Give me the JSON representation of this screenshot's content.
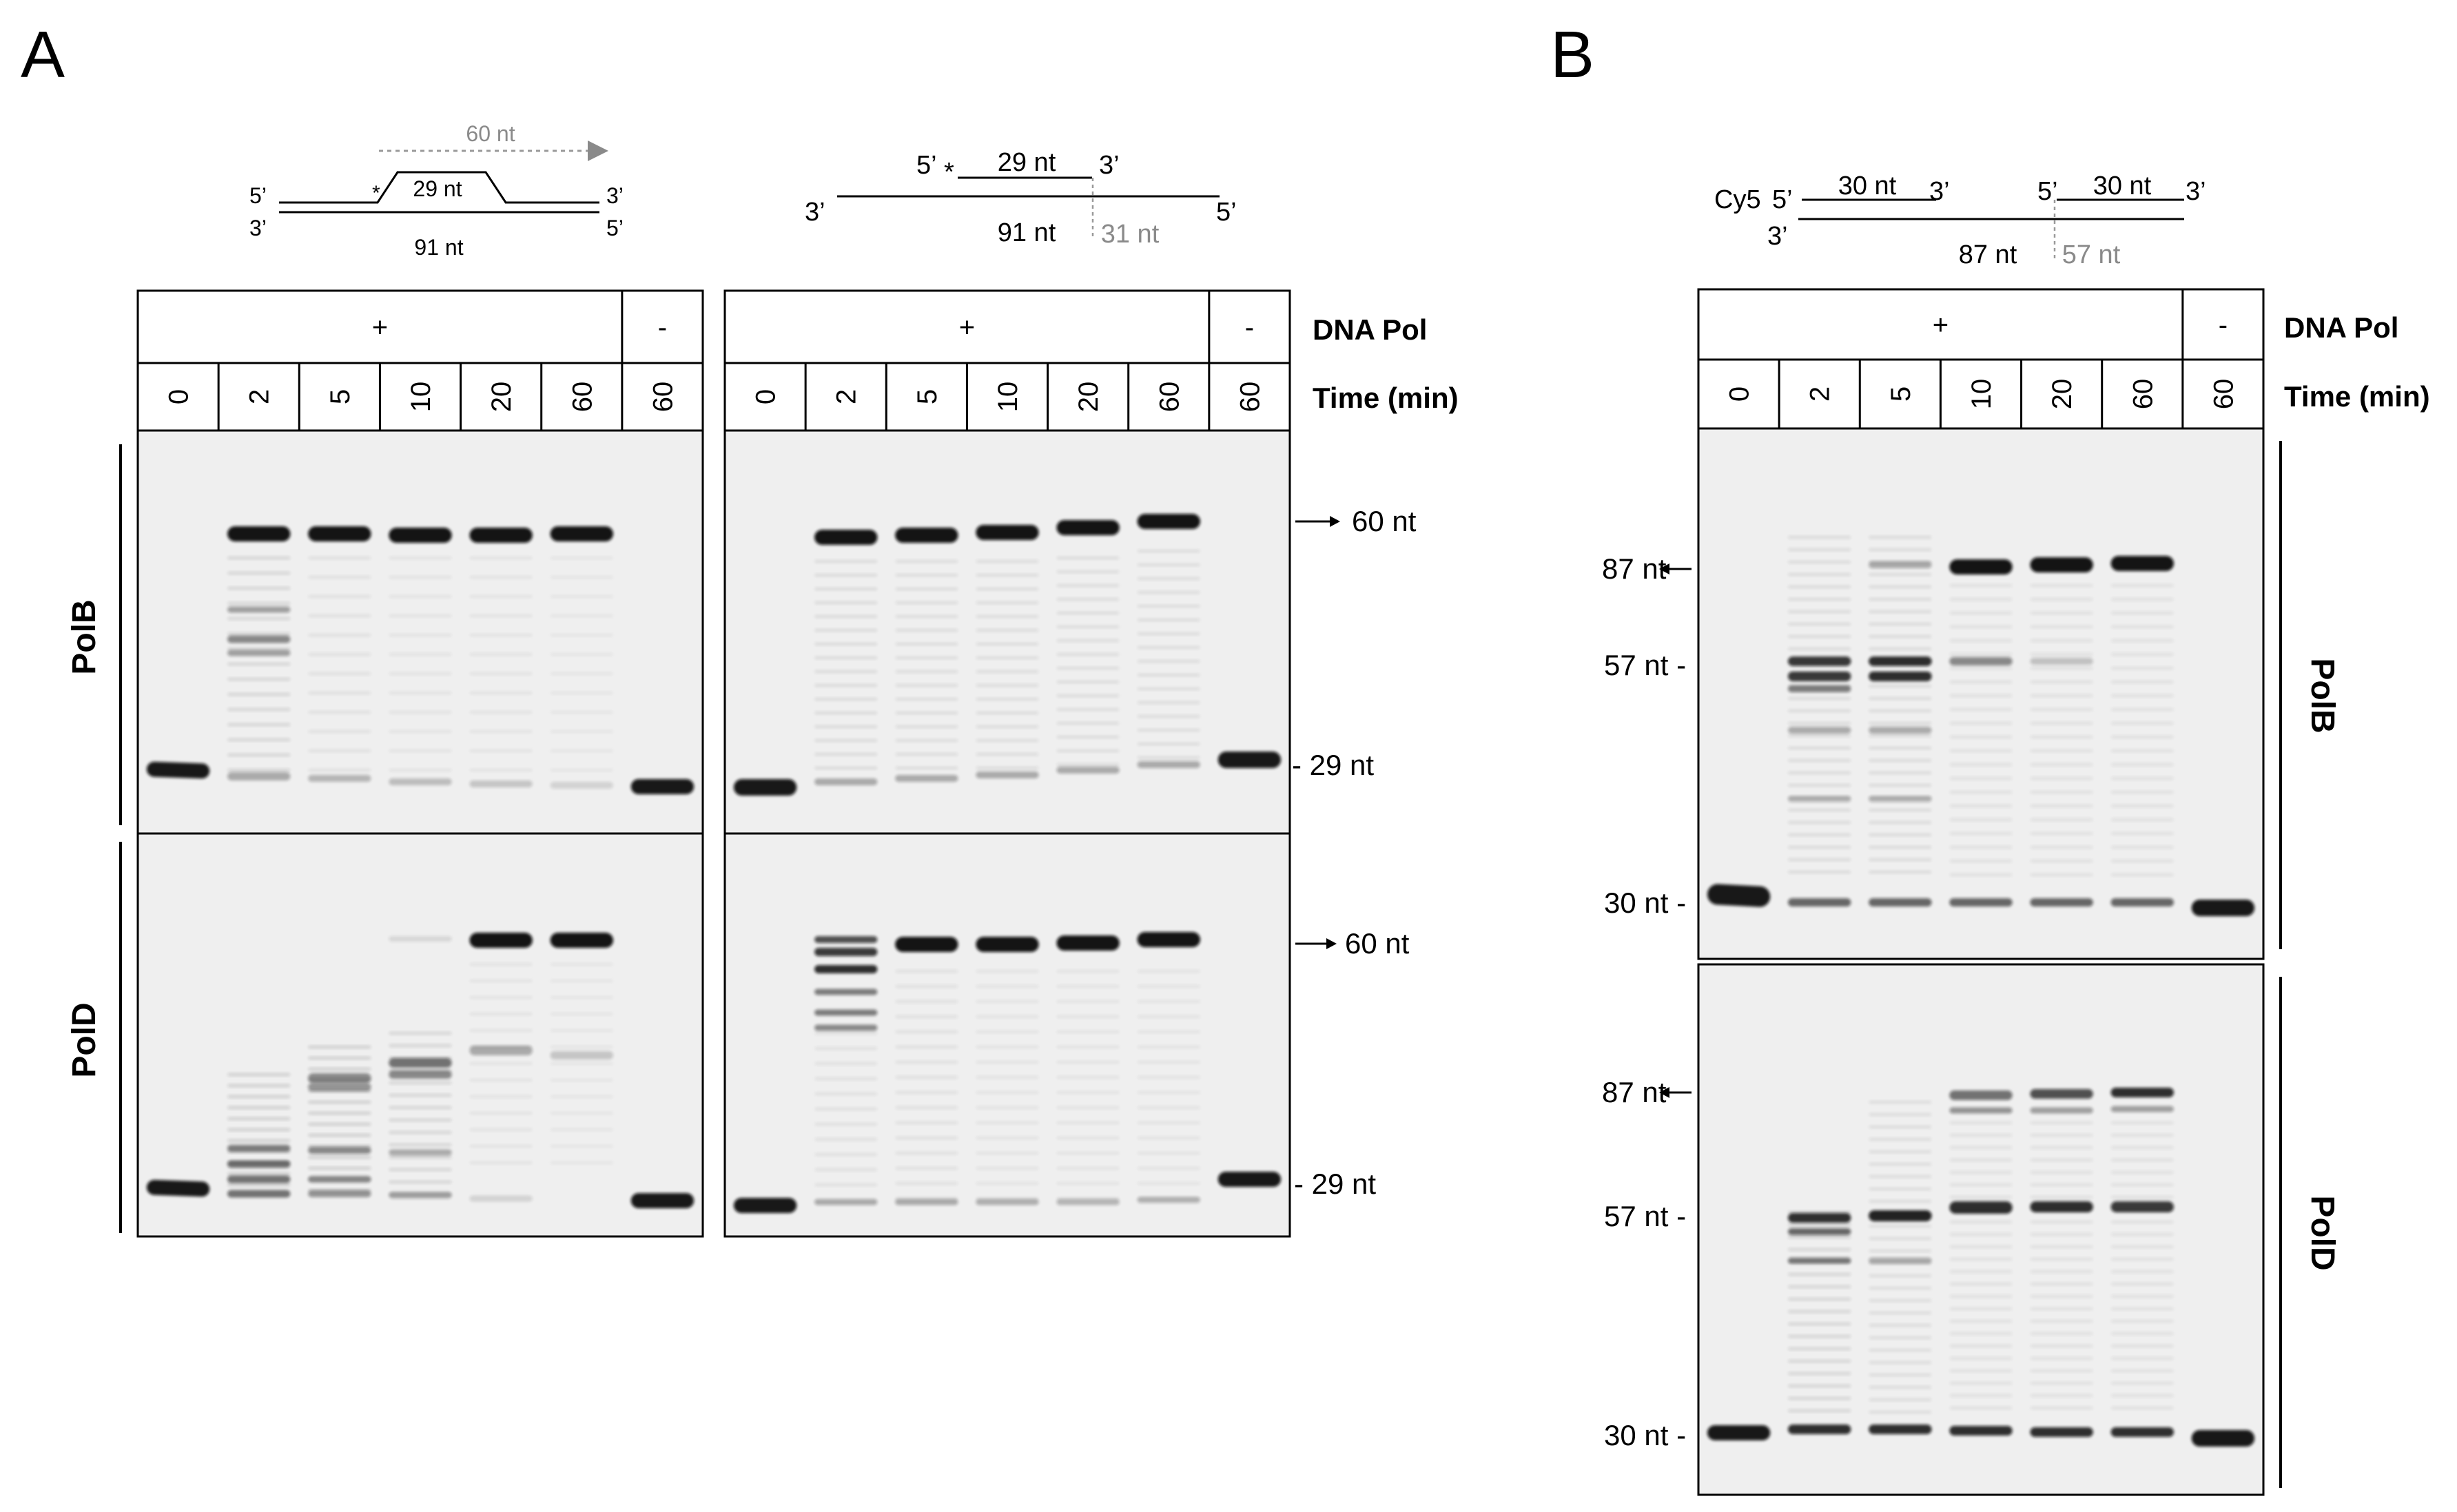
{
  "panel_A": {
    "label": "A",
    "substrate1": {
      "primer_label": "29 nt",
      "template_label": "91 nt",
      "product_label": "60 nt",
      "end_5": "5’",
      "end_3": "3’",
      "asterisk": "*"
    },
    "substrate2": {
      "end_5": "5’",
      "end_3": "3’",
      "asterisk": "*",
      "primer_label": "29 nt",
      "template_label": "91 nt",
      "gap_label": "31 nt"
    },
    "gel_left": {
      "polymerase_row": {
        "plus": "+",
        "minus": "-"
      },
      "times": [
        "0",
        "2",
        "5",
        "10",
        "20",
        "60",
        "60"
      ]
    },
    "gel_right": {
      "polymerase_row": {
        "plus": "+",
        "minus": "-"
      },
      "times": [
        "0",
        "2",
        "5",
        "10",
        "20",
        "60",
        "60"
      ]
    },
    "row_labels": [
      "PolB",
      "PolD"
    ],
    "markers": {
      "top_product": "60 nt",
      "top_primer": "29 nt",
      "bottom_product": "60 nt",
      "bottom_primer": "29 nt"
    },
    "header_labels": {
      "dna_pol": "DNA Pol",
      "time": "Time (min)"
    }
  },
  "panel_B": {
    "label": "B",
    "substrate": {
      "cy5": "Cy5",
      "end_5": "5’",
      "end_3": "3’",
      "primer1_label": "30 nt",
      "primer2_label": "30 nt",
      "template_label": "87 nt",
      "gap_label": "57 nt"
    },
    "gel": {
      "polymerase_row": {
        "plus": "+",
        "minus": "-"
      },
      "times": [
        "0",
        "2",
        "5",
        "10",
        "20",
        "60",
        "60"
      ]
    },
    "row_labels": [
      "PolB",
      "PolD"
    ],
    "markers": {
      "top_full": "87 nt",
      "top_mid": "57 nt",
      "top_primer": "30 nt",
      "bottom_full": "87 nt",
      "bottom_mid": "57 nt",
      "bottom_primer": "30 nt"
    },
    "header_labels": {
      "dna_pol": "DNA Pol",
      "time": "Time (min)"
    }
  },
  "colors": {
    "gel_bg": "#efefef",
    "band": "#0a0a0a",
    "grey_text": "#8a8a8a"
  }
}
